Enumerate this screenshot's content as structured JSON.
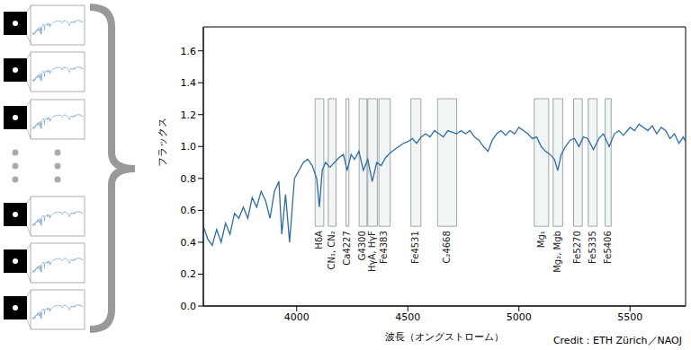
{
  "chart_data": {
    "type": "line",
    "x_label": "波長（オングストローム）",
    "y_label": "フラックス",
    "credit": "Credit：ETH Zürich／NAOJ",
    "color": "#2e6da4",
    "xlim": [
      3580,
      5750
    ],
    "ylim": [
      0,
      1.75
    ],
    "xticks": [
      4000,
      4500,
      5000,
      5500
    ],
    "yticks": [
      {
        "value": 0,
        "label": "0.0"
      },
      {
        "value": 0.2,
        "label": "0.2"
      },
      {
        "value": 0.4,
        "label": "0.4"
      },
      {
        "value": 0.6,
        "label": "0.6"
      },
      {
        "value": 0.8,
        "label": "0.8"
      },
      {
        "value": 1,
        "label": "1.0"
      },
      {
        "value": 1.2,
        "label": "1.2"
      },
      {
        "value": 1.4,
        "label": "1.4"
      },
      {
        "value": 1.6,
        "label": "1.6"
      }
    ],
    "x": [
      3580,
      3600,
      3620,
      3640,
      3660,
      3680,
      3700,
      3720,
      3740,
      3760,
      3780,
      3800,
      3820,
      3840,
      3860,
      3880,
      3900,
      3920,
      3933,
      3950,
      3968,
      3990,
      4010,
      4030,
      4050,
      4070,
      4090,
      4102,
      4115,
      4130,
      4150,
      4170,
      4190,
      4210,
      4227,
      4245,
      4260,
      4280,
      4300,
      4320,
      4340,
      4360,
      4380,
      4400,
      4420,
      4440,
      4460,
      4480,
      4500,
      4520,
      4540,
      4560,
      4580,
      4600,
      4620,
      4640,
      4660,
      4680,
      4700,
      4720,
      4740,
      4760,
      4780,
      4800,
      4820,
      4840,
      4861,
      4880,
      4900,
      4920,
      4940,
      4960,
      4980,
      5000,
      5020,
      5040,
      5060,
      5080,
      5100,
      5120,
      5140,
      5160,
      5175,
      5190,
      5210,
      5230,
      5250,
      5270,
      5290,
      5310,
      5335,
      5360,
      5380,
      5406,
      5430,
      5450,
      5470,
      5500,
      5520,
      5540,
      5560,
      5580,
      5600,
      5620,
      5640,
      5660,
      5680,
      5700,
      5720,
      5740,
      5750
    ],
    "values": [
      0.5,
      0.42,
      0.38,
      0.48,
      0.4,
      0.52,
      0.45,
      0.58,
      0.55,
      0.62,
      0.55,
      0.68,
      0.62,
      0.72,
      0.66,
      0.55,
      0.72,
      0.78,
      0.45,
      0.7,
      0.4,
      0.8,
      0.85,
      0.9,
      0.92,
      0.88,
      0.8,
      0.62,
      0.85,
      0.9,
      0.87,
      0.9,
      0.93,
      0.95,
      0.85,
      0.95,
      0.92,
      0.97,
      0.85,
      0.92,
      0.78,
      0.9,
      0.88,
      0.93,
      0.96,
      0.98,
      1.0,
      1.02,
      1.03,
      1.05,
      1.02,
      1.06,
      1.08,
      1.06,
      1.1,
      1.08,
      1.06,
      1.1,
      1.09,
      1.08,
      1.1,
      1.08,
      1.1,
      1.06,
      1.04,
      1.0,
      0.97,
      1.04,
      1.08,
      1.1,
      1.07,
      1.1,
      1.08,
      1.12,
      1.1,
      1.08,
      1.05,
      1.06,
      1.0,
      0.97,
      0.95,
      0.92,
      0.85,
      0.95,
      1.0,
      1.04,
      1.05,
      1.0,
      1.06,
      1.05,
      0.98,
      1.05,
      1.08,
      1.0,
      1.08,
      1.1,
      1.07,
      1.12,
      1.1,
      1.14,
      1.12,
      1.1,
      1.13,
      1.08,
      1.12,
      1.1,
      1.05,
      1.08,
      1.02,
      1.06,
      1.03
    ],
    "band_ylim": [
      0.5,
      1.3
    ],
    "bands": [
      {
        "label": "HδA",
        "range": [
          4083,
          4122
        ]
      },
      {
        "label": "CN₁, CN₂",
        "range": [
          4142,
          4177
        ]
      },
      {
        "label": "Ca4227",
        "range": [
          4222,
          4235
        ]
      },
      {
        "label": "G4300",
        "range": [
          4281,
          4316
        ]
      },
      {
        "label": "HγA, HγF",
        "range": [
          4320,
          4363
        ]
      },
      {
        "label": "Fe4383",
        "range": [
          4370,
          4421
        ]
      },
      {
        "label": "Fe4531",
        "range": [
          4514,
          4559
        ]
      },
      {
        "label": "C₂4668",
        "range": [
          4634,
          4720
        ]
      },
      {
        "label": "Mg₁",
        "range": [
          5069,
          5134
        ]
      },
      {
        "label": "Mg₂, Mgb",
        "range": [
          5154,
          5197
        ]
      },
      {
        "label": "Fe5270",
        "range": [
          5246,
          5285
        ]
      },
      {
        "label": "Fe5335",
        "range": [
          5312,
          5352
        ]
      },
      {
        "label": "Fe5406",
        "range": [
          5388,
          5415
        ]
      }
    ]
  }
}
